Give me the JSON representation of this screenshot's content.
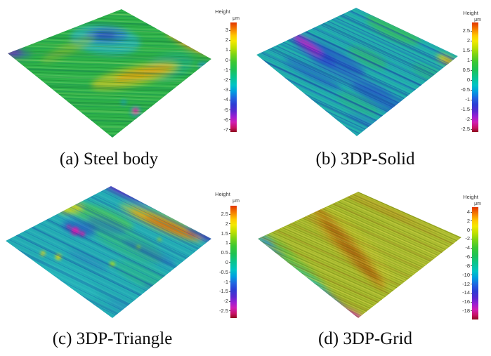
{
  "figure": {
    "colormap_stops": [
      "#e23500 0%",
      "#f57d00 6%",
      "#ffc800 12%",
      "#f4e800 17%",
      "#c0e000 23%",
      "#7ed414 29%",
      "#3cc832 36%",
      "#1ec254 43%",
      "#0ac48e 50%",
      "#00c4c4 57%",
      "#009ee0 63%",
      "#2064e0 69%",
      "#2c3cd4 75%",
      "#5a28d0 81%",
      "#9a1ed2 86%",
      "#d01eb4 91%",
      "#c81266 96%",
      "#8f0a1e 100%"
    ],
    "panels": [
      {
        "id": "a",
        "caption": "(a) Steel body",
        "colorbar": {
          "title": "Height",
          "unit": "μm",
          "ticks": [
            "3",
            "2",
            "1",
            "0",
            "-1",
            "-2",
            "-3",
            "-4",
            "-5",
            "-6",
            "-7"
          ]
        }
      },
      {
        "id": "b",
        "caption": "(b) 3DP-Solid",
        "colorbar": {
          "title": "Height",
          "unit": "μm",
          "ticks": [
            "2.5",
            "2",
            "1.5",
            "1",
            "0.5",
            "0",
            "-0.5",
            "-1",
            "-1.5",
            "-2",
            "-2.5"
          ]
        }
      },
      {
        "id": "c",
        "caption": "(c) 3DP-Triangle",
        "colorbar": {
          "title": "Height",
          "unit": "μm",
          "ticks": [
            "2.5",
            "2",
            "1.5",
            "1",
            "0.5",
            "0",
            "-0.5",
            "-1",
            "-1.5",
            "-2",
            "-2.5"
          ]
        }
      },
      {
        "id": "d",
        "caption": "(d) 3DP-Grid",
        "colorbar": {
          "title": "Height",
          "unit": "μm",
          "ticks": [
            "4",
            "2",
            "0",
            "-2",
            "-4",
            "-6",
            "-8",
            "-10",
            "-12",
            "-14",
            "-16",
            "-18"
          ]
        }
      }
    ]
  },
  "chart_data": [
    {
      "type": "heatmap",
      "title": "(a) Steel body",
      "zlabel": "Height",
      "unit": "μm",
      "zrange": [
        -7,
        3
      ],
      "colorbar_ticks": [
        3,
        2,
        1,
        0,
        -1,
        -2,
        -3,
        -4,
        -5,
        -6,
        -7
      ],
      "legend_position": "right",
      "notes": "3D perspective surface map; mostly ~0 um green with horizontal machining streaks, shallow cyan-blue depression upper-center, orange ridge at upper-right edge, yellow-orange diagonal band lower-center-right, purple pit at left corner, magenta pit near bottom"
    },
    {
      "type": "heatmap",
      "title": "(b) 3DP-Solid",
      "zlabel": "Height",
      "unit": "μm",
      "zrange": [
        -2.5,
        2.5
      ],
      "colorbar_ticks": [
        2.5,
        2,
        1.5,
        1,
        0.5,
        0,
        -0.5,
        -1,
        -1.5,
        -2,
        -2.5
      ],
      "legend_position": "right",
      "notes": "teal/cyan surface with dense dark-blue diagonal grooves, magenta deep groove upper-left, green high patches, small yellow-orange peak at right edge"
    },
    {
      "type": "heatmap",
      "title": "(c) 3DP-Triangle",
      "zlabel": "Height",
      "unit": "μm",
      "zrange": [
        -2.5,
        2.5
      ],
      "colorbar_ticks": [
        2.5,
        2,
        1.5,
        1,
        0.5,
        0,
        -0.5,
        -1,
        -1.5,
        -2,
        -2.5
      ],
      "legend_position": "right",
      "notes": "teal surface with purple band at top edge, yellow-green high swath from upper-left through center, orange ridge parallel to upper-right edge ending in purple at right corner, magenta pits mid-left, scattered blue grooves and small yellow spots"
    },
    {
      "type": "heatmap",
      "title": "(d) 3DP-Grid",
      "zlabel": "Height",
      "unit": "μm",
      "zrange": [
        -18,
        4
      ],
      "colorbar_ticks": [
        4,
        2,
        0,
        -2,
        -4,
        -6,
        -8,
        -10,
        -12,
        -14,
        -16,
        -18
      ],
      "legend_position": "right",
      "notes": "olive yellow-green surface with fine diagonal striations, orange-brown band across middle-left, lower-left edge falls off through green-cyan-blue-violet to magenta at bottom corner"
    }
  ]
}
